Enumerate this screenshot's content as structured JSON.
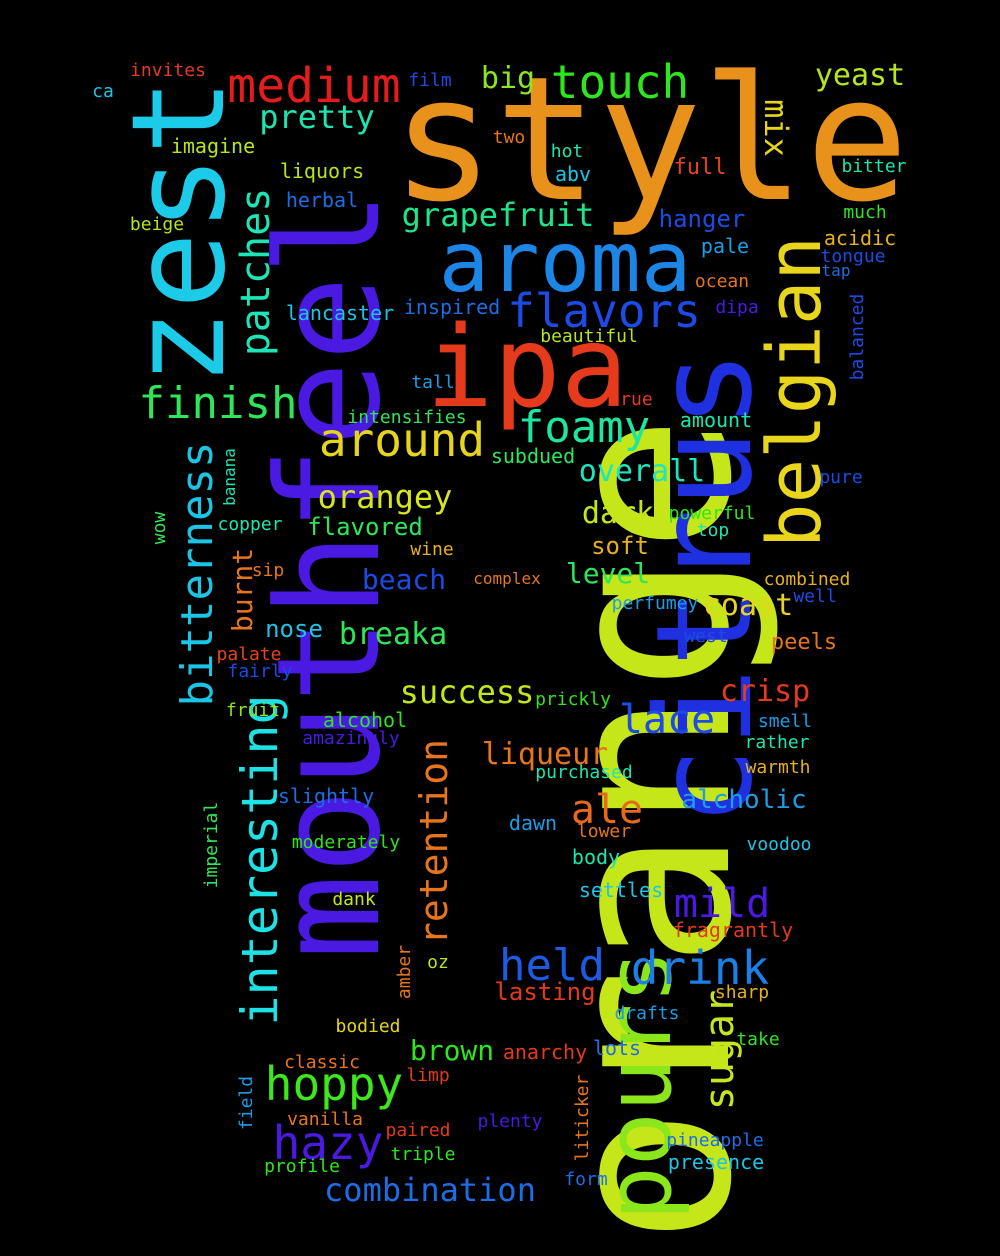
{
  "words": [
    {
      "text": "orange",
      "color": "#c5e619"
    },
    {
      "text": "style",
      "color": "#e8921c"
    },
    {
      "text": "mouthfeel",
      "color": "#4a19e2"
    },
    {
      "text": "citrus",
      "color": "#1f30e0"
    },
    {
      "text": "zest",
      "color": "#1ccbe8"
    },
    {
      "text": "ipa",
      "color": "#e53a1c"
    },
    {
      "text": "aroma",
      "color": "#1c86e6"
    },
    {
      "text": "belgian",
      "color": "#e8d51c"
    },
    {
      "text": "pours",
      "color": "#8be61c"
    },
    {
      "text": "interesting",
      "color": "#1ce2e6"
    },
    {
      "text": "medium",
      "color": "#e51c1c"
    },
    {
      "text": "touch",
      "color": "#2ee61c"
    },
    {
      "text": "around",
      "color": "#e6d51c"
    },
    {
      "text": "flavors",
      "color": "#1c4be6"
    },
    {
      "text": "finish",
      "color": "#2ee659"
    },
    {
      "text": "foamy",
      "color": "#1ce6a0"
    },
    {
      "text": "bitterness",
      "color": "#1cc4e6"
    },
    {
      "text": "hoppy",
      "color": "#3ee61c"
    },
    {
      "text": "hazy",
      "color": "#4a19e2"
    },
    {
      "text": "drink",
      "color": "#1c7fe6"
    },
    {
      "text": "held",
      "color": "#1c5be6"
    },
    {
      "text": "patches",
      "color": "#1ce6b7"
    },
    {
      "text": "retention",
      "color": "#e6751c"
    },
    {
      "text": "mild",
      "color": "#4a19e2"
    },
    {
      "text": "grapefruit",
      "color": "#1ce68a"
    },
    {
      "text": "orangey",
      "color": "#d8e61c"
    },
    {
      "text": "lace",
      "color": "#1c4be6"
    },
    {
      "text": "ale",
      "color": "#e6691c"
    },
    {
      "text": "success",
      "color": "#c5e619"
    },
    {
      "text": "combination",
      "color": "#1c6de6"
    },
    {
      "text": "sugar",
      "color": "#c8e61c"
    },
    {
      "text": "pretty",
      "color": "#1ce6b0"
    },
    {
      "text": "big",
      "color": "#8be61c"
    },
    {
      "text": "yeast",
      "color": "#b6e61c"
    },
    {
      "text": "mix",
      "color": "#e6d51c"
    },
    {
      "text": "overall",
      "color": "#1ce6c2"
    },
    {
      "text": "breaka",
      "color": "#2ee659"
    },
    {
      "text": "coast",
      "color": "#e6d51c"
    },
    {
      "text": "crisp",
      "color": "#e53a1c"
    },
    {
      "text": "liqueur",
      "color": "#e6751c"
    },
    {
      "text": "alcholic",
      "color": "#1c9de6"
    },
    {
      "text": "burnt",
      "color": "#e6751c"
    },
    {
      "text": "dark",
      "color": "#c5e619"
    },
    {
      "text": "beach",
      "color": "#1c4be6"
    },
    {
      "text": "level",
      "color": "#2ee659"
    },
    {
      "text": "brown",
      "color": "#2ee61c"
    },
    {
      "text": "flavored",
      "color": "#2ee659"
    },
    {
      "text": "nose",
      "color": "#1cc4e6"
    },
    {
      "text": "soft",
      "color": "#e6b21c"
    },
    {
      "text": "hanger",
      "color": "#1c4be6"
    },
    {
      "text": "lasting",
      "color": "#e53a1c"
    },
    {
      "text": "invites",
      "color": "#e53a1c"
    },
    {
      "text": "ca",
      "color": "#1cc4e6"
    },
    {
      "text": "film",
      "color": "#1c4be6"
    },
    {
      "text": "imagine",
      "color": "#b6e61c"
    },
    {
      "text": "two",
      "color": "#e6751c"
    },
    {
      "text": "liquors",
      "color": "#b6e61c"
    },
    {
      "text": "hot",
      "color": "#1ce6b0"
    },
    {
      "text": "abv",
      "color": "#1cc4e6"
    },
    {
      "text": "full",
      "color": "#e6451c"
    },
    {
      "text": "bitter",
      "color": "#1ce6b0"
    },
    {
      "text": "herbal",
      "color": "#1c6de6"
    },
    {
      "text": "beige",
      "color": "#b6e61c"
    },
    {
      "text": "much",
      "color": "#2ee61c"
    },
    {
      "text": "acidic",
      "color": "#e6b21c"
    },
    {
      "text": "pale",
      "color": "#1c9de6"
    },
    {
      "text": "tongue",
      "color": "#1c4be6"
    },
    {
      "text": "tap",
      "color": "#1c6de6"
    },
    {
      "text": "ocean",
      "color": "#e6751c"
    },
    {
      "text": "inspired",
      "color": "#1c6de6"
    },
    {
      "text": "lancaster",
      "color": "#1cc4e6"
    },
    {
      "text": "dipa",
      "color": "#4a19e2"
    },
    {
      "text": "beautiful",
      "color": "#b6e61c"
    },
    {
      "text": "balanced",
      "color": "#1c4be6"
    },
    {
      "text": "tall",
      "color": "#1c9de6"
    },
    {
      "text": "true",
      "color": "#e53a1c"
    },
    {
      "text": "intensifies",
      "color": "#2ee659"
    },
    {
      "text": "amount",
      "color": "#1ce6b0"
    },
    {
      "text": "subdued",
      "color": "#2ee659"
    },
    {
      "text": "banana",
      "color": "#1ce6b0"
    },
    {
      "text": "pure",
      "color": "#1c4be6"
    },
    {
      "text": "copper",
      "color": "#1ce6b0"
    },
    {
      "text": "powerful",
      "color": "#2ee61c"
    },
    {
      "text": "top",
      "color": "#1ce6b0"
    },
    {
      "text": "wow",
      "color": "#2ee659"
    },
    {
      "text": "wine",
      "color": "#e6b21c"
    },
    {
      "text": "sip",
      "color": "#e6751c"
    },
    {
      "text": "complex",
      "color": "#e6751c"
    },
    {
      "text": "combined",
      "color": "#e6b21c"
    },
    {
      "text": "perfumey",
      "color": "#1c9de6"
    },
    {
      "text": "well",
      "color": "#1c4be6"
    },
    {
      "text": "west",
      "color": "#1c4be6"
    },
    {
      "text": "peels",
      "color": "#e6751c"
    },
    {
      "text": "palate",
      "color": "#e6451c"
    },
    {
      "text": "fairly",
      "color": "#1c4be6"
    },
    {
      "text": "fruit",
      "color": "#8be61c"
    },
    {
      "text": "alcohol",
      "color": "#2ee61c"
    },
    {
      "text": "prickly",
      "color": "#2ee61c"
    },
    {
      "text": "smell",
      "color": "#1c9de6"
    },
    {
      "text": "amazingly",
      "color": "#4a19e2"
    },
    {
      "text": "rather",
      "color": "#1ce6b0"
    },
    {
      "text": "purchased",
      "color": "#1ce6b0"
    },
    {
      "text": "warmth",
      "color": "#e6b21c"
    },
    {
      "text": "slightly",
      "color": "#1c6de6"
    },
    {
      "text": "imperial",
      "color": "#2ee659"
    },
    {
      "text": "dawn",
      "color": "#1c9de6"
    },
    {
      "text": "lower",
      "color": "#e6751c"
    },
    {
      "text": "moderately",
      "color": "#2ee61c"
    },
    {
      "text": "voodoo",
      "color": "#1cc4e6"
    },
    {
      "text": "body",
      "color": "#1ce6b0"
    },
    {
      "text": "settles",
      "color": "#1cc4e6"
    },
    {
      "text": "dank",
      "color": "#c5e619"
    },
    {
      "text": "fragrantly",
      "color": "#e53a1c"
    },
    {
      "text": "amber",
      "color": "#e6751c"
    },
    {
      "text": "oz",
      "color": "#b6e61c"
    },
    {
      "text": "sharp",
      "color": "#e6b21c"
    },
    {
      "text": "drafts",
      "color": "#1c9de6"
    },
    {
      "text": "bodied",
      "color": "#e6d51c"
    },
    {
      "text": "take",
      "color": "#2ee61c"
    },
    {
      "text": "anarchy",
      "color": "#e53a1c"
    },
    {
      "text": "lots",
      "color": "#1c6de6"
    },
    {
      "text": "classic",
      "color": "#e6751c"
    },
    {
      "text": "limp",
      "color": "#e53a1c"
    },
    {
      "text": "field",
      "color": "#1c9de6"
    },
    {
      "text": "liticker",
      "color": "#e6751c"
    },
    {
      "text": "vanilla",
      "color": "#e6751c"
    },
    {
      "text": "paired",
      "color": "#e53a1c"
    },
    {
      "text": "plenty",
      "color": "#4a19e2"
    },
    {
      "text": "pineapple",
      "color": "#1c6de6"
    },
    {
      "text": "triple",
      "color": "#2ee61c"
    },
    {
      "text": "presence",
      "color": "#1cc4e6"
    },
    {
      "text": "profile",
      "color": "#2ee61c"
    },
    {
      "text": "form",
      "color": "#1c6de6"
    }
  ]
}
